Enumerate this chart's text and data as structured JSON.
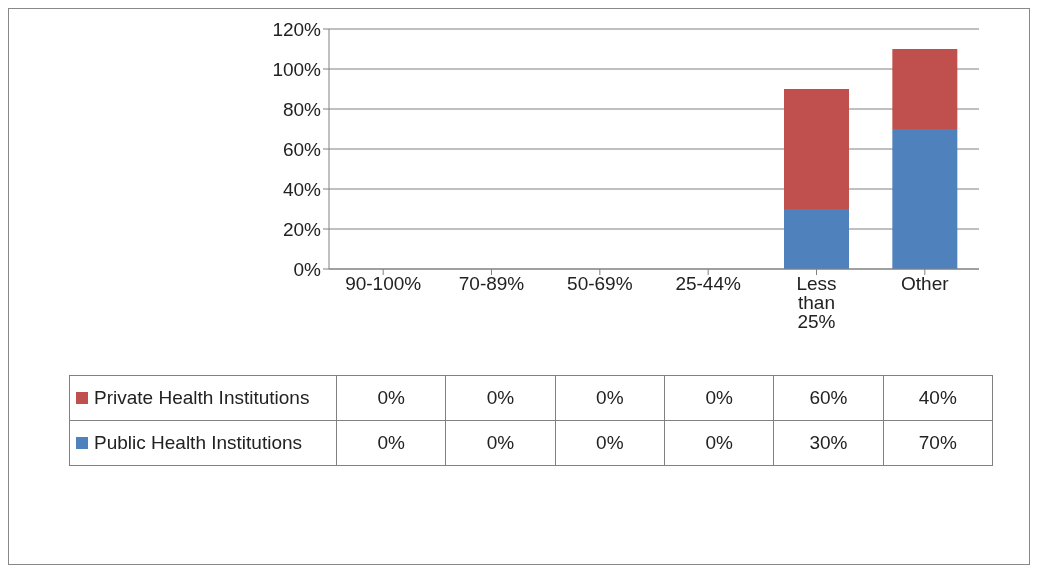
{
  "chart_data": {
    "type": "bar",
    "stacked": true,
    "categories": [
      "90-100%",
      "70-89%",
      "50-69%",
      "25-44%",
      "Less than 25%",
      "Other"
    ],
    "series": [
      {
        "name": "Public Health Institutions",
        "color": "#4f81bd",
        "values": [
          0,
          0,
          0,
          0,
          30,
          70
        ],
        "value_labels": [
          "0%",
          "0%",
          "0%",
          "0%",
          "30%",
          "70%"
        ]
      },
      {
        "name": "Private Health Institutions",
        "color": "#c0504d",
        "values": [
          0,
          0,
          0,
          0,
          60,
          40
        ],
        "value_labels": [
          "0%",
          "0%",
          "0%",
          "0%",
          "60%",
          "40%"
        ]
      }
    ],
    "ylim": [
      0,
      120
    ],
    "yticks": [
      {
        "value": 0,
        "label": "0%"
      },
      {
        "value": 20,
        "label": "20%"
      },
      {
        "value": 40,
        "label": "40%"
      },
      {
        "value": 60,
        "label": "60%"
      },
      {
        "value": 80,
        "label": "80%"
      },
      {
        "value": 100,
        "label": "100%"
      },
      {
        "value": 120,
        "label": "120%"
      }
    ],
    "grid": "y",
    "legend": "bottom"
  }
}
